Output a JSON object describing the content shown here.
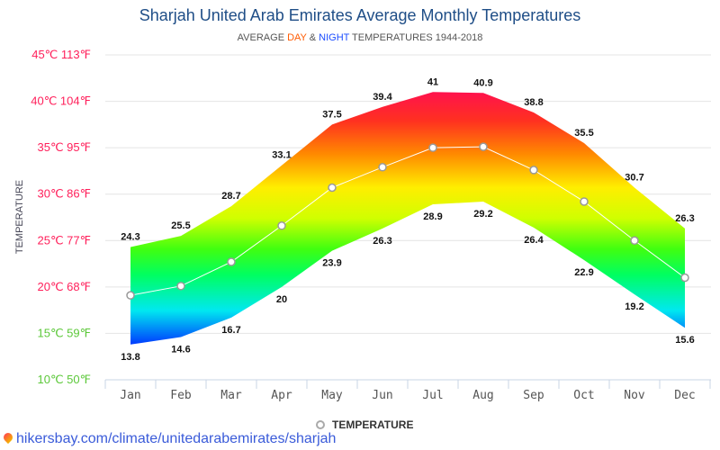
{
  "chart_data": {
    "type": "area",
    "title": "Sharjah United Arab Emirates Average Monthly Temperatures",
    "subtitle": {
      "prefix": "AVERAGE ",
      "day": "DAY",
      "amp": " & ",
      "night": "NIGHT",
      "suffix": " TEMPERATURES 1944-2018"
    },
    "ylabel": "TEMPERATURE",
    "ylim": [
      10,
      45
    ],
    "y_ticks": [
      {
        "value": 45,
        "label": "45℃ 113℉",
        "color": "#ff1f5a"
      },
      {
        "value": 40,
        "label": "40℃ 104℉",
        "color": "#ff1f5a"
      },
      {
        "value": 35,
        "label": "35℃ 95℉",
        "color": "#ff1f5a"
      },
      {
        "value": 30,
        "label": "30℃ 86℉",
        "color": "#ff1f5a"
      },
      {
        "value": 25,
        "label": "25℃ 77℉",
        "color": "#ff1f5a"
      },
      {
        "value": 20,
        "label": "20℃ 68℉",
        "color": "#ff1f5a"
      },
      {
        "value": 15,
        "label": "15℃ 59℉",
        "color": "#5cc83a"
      },
      {
        "value": 10,
        "label": "10℃ 50℉",
        "color": "#5cc83a"
      }
    ],
    "categories": [
      "Jan",
      "Feb",
      "Mar",
      "Apr",
      "May",
      "Jun",
      "Jul",
      "Aug",
      "Sep",
      "Oct",
      "Nov",
      "Dec"
    ],
    "day": [
      24.3,
      25.5,
      28.7,
      33.1,
      37.5,
      39.4,
      41,
      40.9,
      38.8,
      35.5,
      30.7,
      26.3
    ],
    "night": [
      13.8,
      14.6,
      16.7,
      20,
      23.9,
      26.3,
      28.9,
      29.2,
      26.4,
      22.9,
      19.2,
      15.6
    ],
    "series": [
      {
        "name": "TEMPERATURE",
        "values": [
          19.1,
          20.1,
          22.7,
          26.6,
          30.7,
          32.9,
          35.0,
          35.1,
          32.6,
          29.2,
          25.0,
          21.0
        ]
      }
    ],
    "legend_position": "bottom",
    "grid": true
  },
  "footer": {
    "link": "hikersbay.com/climate/unitedarabemirates/sharjah"
  }
}
